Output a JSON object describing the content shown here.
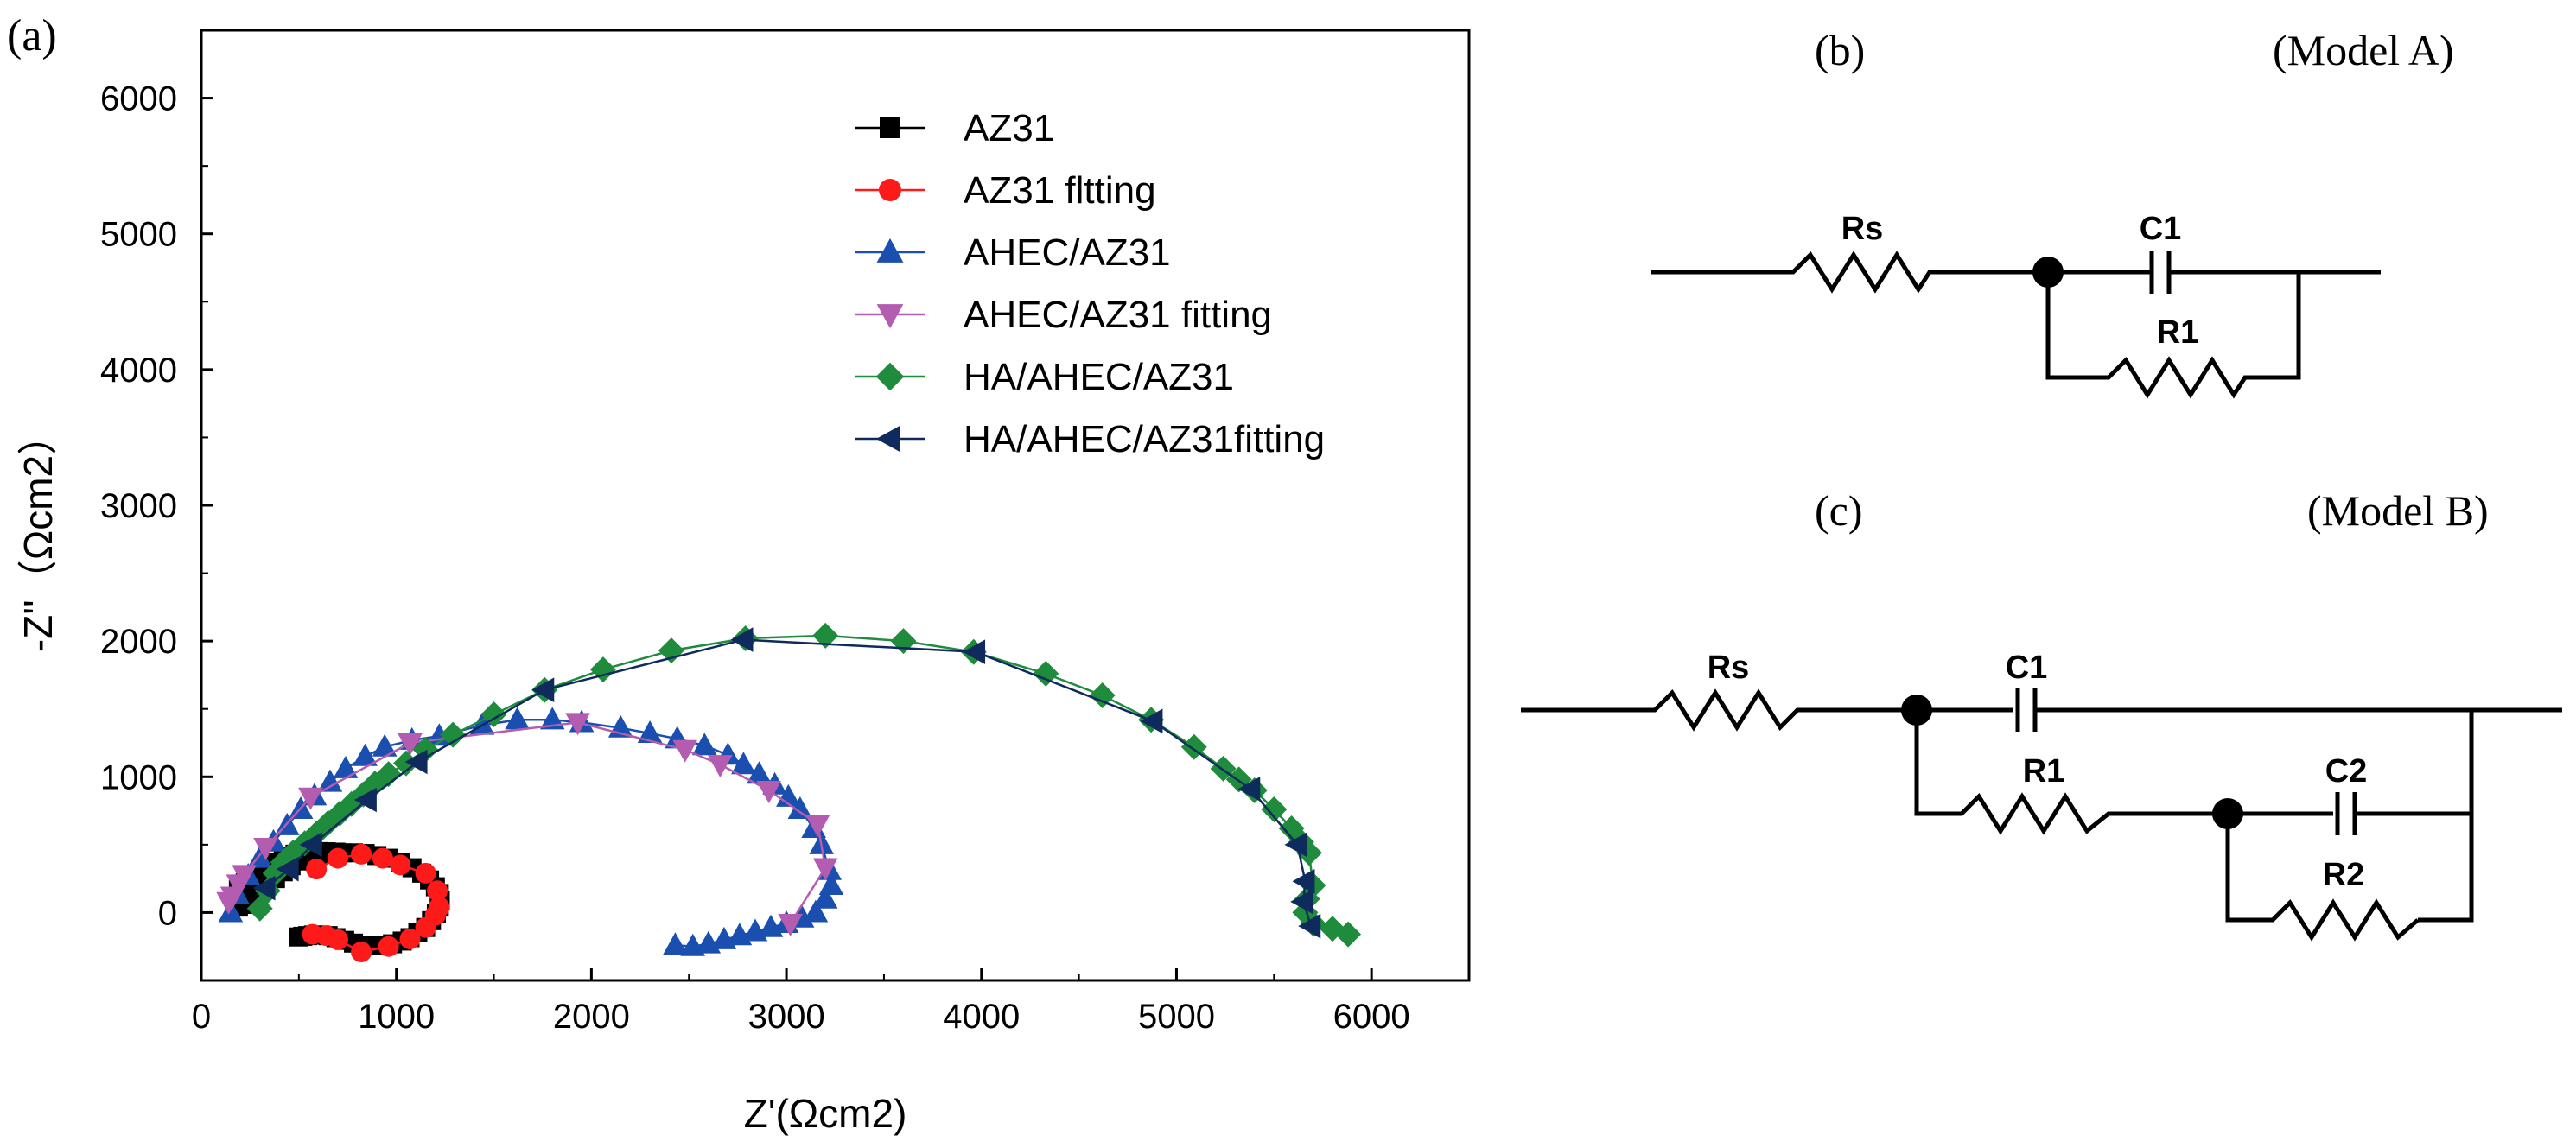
{
  "panels": {
    "a_label": "(a)",
    "b_label": "(b)",
    "b_model": "(Model A)",
    "c_label": "(c)",
    "c_model": "(Model B)"
  },
  "circuit_a": {
    "rs": "Rs",
    "c1": "C1",
    "r1": "R1"
  },
  "circuit_b": {
    "rs": "Rs",
    "c1": "C1",
    "r1": "R1",
    "c2": "C2",
    "r2": "R2"
  },
  "chart_data": {
    "type": "scatter",
    "title": "",
    "xlabel": "Z'(Ωcm2)",
    "ylabel": "-Z''（Ωcm2）",
    "xlim": [
      0,
      6500
    ],
    "ylim": [
      -500,
      6500
    ],
    "xticks": [
      0,
      1000,
      2000,
      3000,
      4000,
      5000,
      6000
    ],
    "yticks": [
      0,
      1000,
      2000,
      3000,
      4000,
      5000,
      6000
    ],
    "grid": false,
    "legend_position": "top-right",
    "series": [
      {
        "name": "AZ31",
        "color": "#000000",
        "marker": "square",
        "x": [
          500,
          520,
          545,
          575,
          610,
          650,
          690,
          735,
          780,
          830,
          880,
          930,
          980,
          1030,
          1070,
          1110,
          1150,
          1180,
          1205,
          1220,
          1225,
          1220,
          1200,
          1170,
          1130,
          1080,
          1020,
          960,
          900,
          840,
          780,
          720,
          660,
          600,
          545,
          500,
          460,
          420,
          380,
          340,
          300,
          260,
          220,
          190,
          170,
          170,
          190,
          225,
          265,
          310,
          350,
          390,
          420,
          450,
          480,
          510,
          540,
          570,
          600,
          640,
          690
        ],
        "y": [
          -180,
          -175,
          -170,
          -165,
          -165,
          -170,
          -185,
          -205,
          -225,
          -240,
          -245,
          -240,
          -230,
          -210,
          -185,
          -150,
          -110,
          -60,
          -10,
          40,
          90,
          140,
          190,
          240,
          290,
          330,
          370,
          400,
          420,
          435,
          440,
          440,
          435,
          425,
          405,
          380,
          345,
          300,
          250,
          200,
          150,
          100,
          60,
          40,
          80,
          120,
          170,
          220,
          260,
          300,
          340,
          370,
          395,
          415,
          430,
          440,
          445,
          448,
          449,
          448,
          445
        ]
      },
      {
        "name": "AZ31 fltting",
        "color": "#ff1a1a",
        "marker": "circle",
        "x": [
          570,
          640,
          700,
          820,
          960,
          1070,
          1150,
          1200,
          1220,
          1210,
          1150,
          1020,
          930,
          820,
          700,
          590
        ],
        "y": [
          -160,
          -170,
          -200,
          -290,
          -250,
          -195,
          -110,
          -20,
          40,
          160,
          290,
          350,
          400,
          430,
          400,
          320
        ]
      },
      {
        "name": "AHEC/AZ31",
        "color": "#1a4fb0",
        "marker": "triangle-up",
        "x": [
          2430,
          2520,
          2600,
          2680,
          2760,
          2840,
          2920,
          3000,
          3080,
          3150,
          3200,
          3230,
          3220,
          3180,
          3140,
          3070,
          3010,
          2940,
          2860,
          2780,
          2700,
          2580,
          2440,
          2300,
          2150,
          1950,
          1800,
          1620,
          1440,
          1220,
          1080,
          940,
          840,
          740,
          660,
          580,
          510,
          440,
          370,
          300,
          240,
          185,
          150
        ],
        "y": [
          -240,
          -250,
          -230,
          -200,
          -170,
          -140,
          -110,
          -80,
          -40,
          0,
          100,
          200,
          310,
          500,
          620,
          760,
          850,
          940,
          1020,
          1090,
          1160,
          1230,
          1280,
          1320,
          1360,
          1400,
          1420,
          1420,
          1380,
          1300,
          1270,
          1220,
          1150,
          1060,
          960,
          860,
          760,
          640,
          520,
          400,
          270,
          130,
          0
        ]
      },
      {
        "name": "AHEC/AZ31 fitting",
        "color": "#b35cb0",
        "marker": "triangle-down",
        "x": [
          3020,
          3200,
          3160,
          2910,
          2660,
          2480,
          1930,
          1070,
          560,
          330,
          220,
          190,
          160,
          140
        ],
        "y": [
          -80,
          330,
          650,
          900,
          1090,
          1200,
          1400,
          1250,
          850,
          480,
          280,
          210,
          120,
          80
        ]
      },
      {
        "name": "HA/AHEC/AZ31",
        "color": "#1e8c3c",
        "marker": "diamond",
        "x": [
          5880,
          5800,
          5700,
          5660,
          5670,
          5700,
          5680,
          5640,
          5590,
          5500,
          5400,
          5320,
          5240,
          5090,
          4870,
          4620,
          4330,
          3960,
          3600,
          3200,
          2790,
          2410,
          2060,
          1760,
          1500,
          1290,
          1150,
          1050,
          960,
          890,
          830,
          770,
          710,
          650,
          590,
          530,
          470,
          420,
          380,
          340,
          300
        ],
        "y": [
          -160,
          -120,
          -80,
          0,
          100,
          200,
          440,
          520,
          620,
          760,
          900,
          980,
          1060,
          1220,
          1420,
          1600,
          1760,
          1920,
          2000,
          2040,
          2020,
          1930,
          1790,
          1640,
          1460,
          1310,
          1200,
          1100,
          1020,
          950,
          870,
          800,
          730,
          660,
          580,
          510,
          440,
          370,
          290,
          160,
          30
        ]
      },
      {
        "name": "HA/AHEC/AZ31fitting",
        "color": "#0f2a5c",
        "marker": "triangle-left",
        "x": [
          5690,
          5650,
          5660,
          5620,
          5380,
          4880,
          3970,
          2780,
          1760,
          1110,
          850,
          570,
          450,
          330
        ],
        "y": [
          -100,
          80,
          230,
          500,
          910,
          1410,
          1920,
          2010,
          1640,
          1110,
          830,
          500,
          320,
          180
        ]
      }
    ]
  }
}
